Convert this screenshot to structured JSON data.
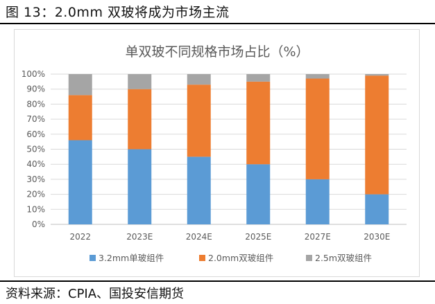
{
  "figure_title": "图 13：2.0mm 双玻将成为市场主流",
  "source": "资料来源：CPIA、国投安信期货",
  "chart_data": {
    "type": "bar",
    "stacked": true,
    "title": "单双玻不同规格市场占比（%）",
    "categories": [
      "2022",
      "2023E",
      "2024E",
      "2025E",
      "2027E",
      "2030E"
    ],
    "series": [
      {
        "name": "3.2mm单玻组件",
        "color": "#5b9bd5",
        "values": [
          56,
          50,
          45,
          40,
          30,
          20
        ]
      },
      {
        "name": "2.0mm双玻组件",
        "color": "#ed7d31",
        "values": [
          30,
          40,
          48,
          55,
          67,
          79
        ]
      },
      {
        "name": "2.5m双玻组件",
        "color": "#a5a5a5",
        "values": [
          14,
          10,
          7,
          5,
          3,
          1
        ]
      }
    ],
    "ylim": [
      0,
      100
    ],
    "yticks": [
      "0%",
      "10%",
      "20%",
      "30%",
      "40%",
      "50%",
      "60%",
      "70%",
      "80%",
      "90%",
      "100%"
    ],
    "legend": "bottom"
  }
}
